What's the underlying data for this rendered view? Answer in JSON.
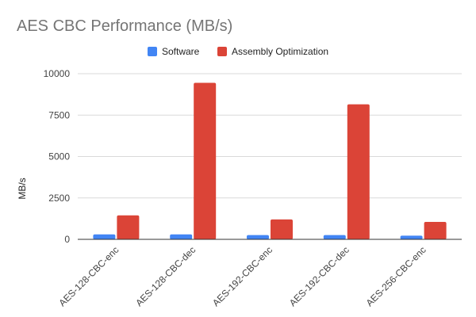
{
  "chart_data": {
    "type": "bar",
    "title": "AES CBC Performance (MB/s)",
    "xlabel": "",
    "ylabel": "MB/s",
    "ylim": [
      0,
      10000
    ],
    "yticks": [
      0,
      2500,
      5000,
      7500,
      10000
    ],
    "grid": true,
    "legend_position": "top",
    "categories": [
      "AES-128-CBC-enc",
      "AES-128-CBC-dec",
      "AES-192-CBC-enc",
      "AES-192-CBC-dec",
      "AES-256-CBC-enc"
    ],
    "series": [
      {
        "name": "Software",
        "color": "#4285f4",
        "values": [
          300,
          300,
          260,
          260,
          220
        ]
      },
      {
        "name": "Assembly Optimization",
        "color": "#db4437",
        "values": [
          1450,
          9450,
          1200,
          8150,
          1050
        ]
      }
    ]
  }
}
